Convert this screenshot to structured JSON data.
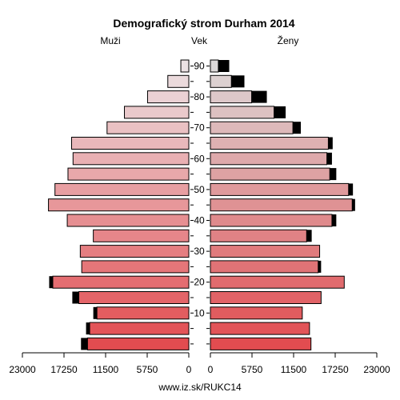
{
  "chart_data": {
    "type": "bar",
    "title": "Demografický strom Durham 2014",
    "left_label": "Muži",
    "center_label": "Vek",
    "right_label": "Ženy",
    "footer": "www.iz.sk/RUKC14",
    "xlim": [
      0,
      23000
    ],
    "x_ticks": [
      "23000",
      "17250",
      "11500",
      "5750",
      "0",
      "0",
      "5750",
      "11500",
      "17250",
      "23000"
    ],
    "age_ticks": [
      "10",
      "20",
      "30",
      "40",
      "50",
      "60",
      "70",
      "80",
      "90"
    ],
    "age_groups": [
      "0-4",
      "5-9",
      "10-14",
      "15-19",
      "20-24",
      "25-29",
      "30-34",
      "35-39",
      "40-44",
      "45-49",
      "50-54",
      "55-59",
      "60-64",
      "65-69",
      "70-74",
      "75-79",
      "80-84",
      "85-89",
      "90+"
    ],
    "series": [
      {
        "name": "Muži",
        "values": [
          14000,
          13700,
          12700,
          15200,
          18800,
          14800,
          15000,
          13200,
          16800,
          19400,
          18500,
          16700,
          16000,
          16200,
          11300,
          8900,
          5700,
          2900,
          1100
        ],
        "excess": [
          900,
          500,
          500,
          900,
          500,
          0,
          0,
          0,
          0,
          0,
          0,
          0,
          0,
          0,
          0,
          0,
          0,
          0,
          0
        ]
      },
      {
        "name": "Ženy",
        "values": [
          13900,
          13700,
          12700,
          15300,
          18500,
          14900,
          15100,
          13300,
          16800,
          19600,
          19100,
          16500,
          16100,
          16300,
          11400,
          8800,
          5700,
          2900,
          1100
        ],
        "excess": [
          0,
          0,
          0,
          0,
          0,
          400,
          0,
          700,
          600,
          400,
          600,
          900,
          700,
          600,
          1100,
          1600,
          2100,
          1800,
          1500
        ]
      }
    ]
  }
}
